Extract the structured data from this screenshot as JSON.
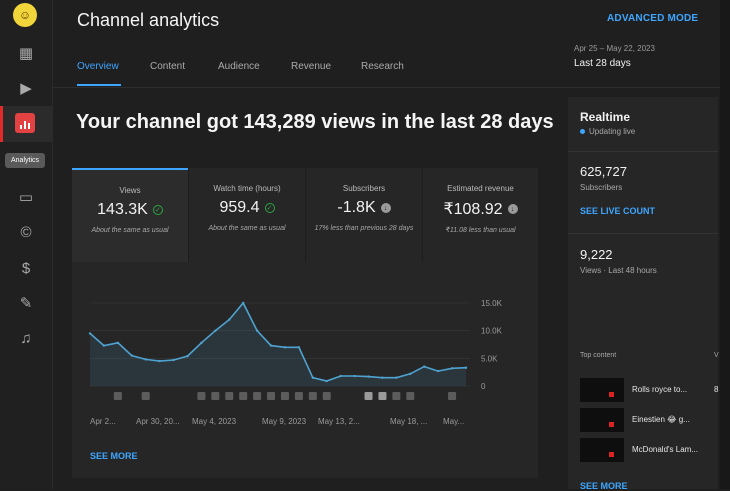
{
  "app": {
    "page_title": "Channel analytics",
    "advanced_mode": "ADVANCED MODE"
  },
  "rail": {
    "tooltip": "Analytics"
  },
  "header": {
    "date_range": "Apr 25 – May 22, 2023",
    "period": "Last 28 days",
    "tabs": [
      {
        "label": "Overview",
        "active": true
      },
      {
        "label": "Content",
        "active": false
      },
      {
        "label": "Audience",
        "active": false
      },
      {
        "label": "Revenue",
        "active": false
      },
      {
        "label": "Research",
        "active": false
      }
    ]
  },
  "headline": "Your channel got 143,289 views in the last 28 days",
  "metrics": [
    {
      "label": "Views",
      "value": "143.3K",
      "status": "check",
      "note": "About the same as usual"
    },
    {
      "label": "Watch time (hours)",
      "value": "959.4",
      "status": "check",
      "note": "About the same as usual"
    },
    {
      "label": "Subscribers",
      "value": "-1.8K",
      "status": "down",
      "note": "17% less than previous 28 days"
    },
    {
      "label": "Estimated revenue",
      "value": "₹108.92",
      "status": "down",
      "note": "₹11.08 less than usual"
    }
  ],
  "chart_data": {
    "type": "area",
    "y_ticks": [
      "15.0K",
      "10.0K",
      "5.0K",
      "0"
    ],
    "ylim": [
      0,
      15000
    ],
    "x_tick_labels": [
      "Apr 2...",
      "Apr 30, 20...",
      "May 4, 2023",
      "May 9, 2023",
      "May 13, 2...",
      "May 18, ...",
      "May..."
    ],
    "values": [
      9500,
      7300,
      7800,
      5500,
      4800,
      4500,
      4700,
      5400,
      7800,
      10000,
      12000,
      15000,
      10000,
      7300,
      7000,
      7000,
      1500,
      900,
      1800,
      1800,
      1700,
      1500,
      1500,
      2200,
      3500,
      2700,
      3200,
      3300
    ],
    "series_color": "#4fa3d1"
  },
  "see_more": "SEE MORE",
  "realtime": {
    "title": "Realtime",
    "live": "Updating live",
    "subs": "625,727",
    "subs_label": "Subscribers",
    "see_live": "SEE LIVE COUNT",
    "views": "9,222",
    "views_label": "Views · Last 48 hours",
    "top_label": "Top content",
    "top_label_right": "V",
    "top": [
      {
        "title": "Rolls royce to...",
        "count": "8"
      },
      {
        "title": "Einestien 😂 g...",
        "count": ""
      },
      {
        "title": "McDonald's Lam...",
        "count": ""
      }
    ],
    "see_more": "SEE MORE"
  },
  "colors": {
    "accent": "#3ea6ff",
    "brand_red": "#e24242",
    "positive": "#2ba640"
  },
  "icons": [
    "dashboard-icon",
    "content-icon",
    "analytics-icon",
    "subtitles-icon",
    "copyright-icon",
    "earn-icon",
    "customization-icon",
    "audio-library-icon"
  ]
}
